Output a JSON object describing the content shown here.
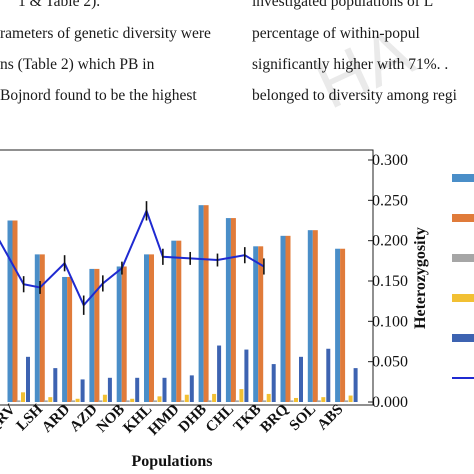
{
  "text_left": [
    "1 & Table 2).",
    "rameters of genetic diversity were",
    "ns  (Table  2)  which  PB  in",
    "Bojnord found to be the highest"
  ],
  "text_right": [
    "investigated  populations  of  L",
    "percentage    of    within-popul",
    "significantly higher with 71%. .",
    "belonged to diversity among regi"
  ],
  "watermark": "HA",
  "chart_data": {
    "type": "bar",
    "xlabel": "Populations",
    "ylabel": "Heterozygosity",
    "ylim": [
      0,
      0.3
    ],
    "yticks": [
      "0.000",
      "0.050",
      "0.100",
      "0.150",
      "0.200",
      "0.250",
      "0.300"
    ],
    "categories": [
      "QRV",
      "LSH",
      "ARD",
      "AZD",
      "NOB",
      "KHL",
      "HMD",
      "DHB",
      "CHL",
      "TKB",
      "BRQ",
      "SOL",
      "ABS"
    ],
    "series": [
      {
        "type": "bar",
        "color": "#4a8ec8",
        "values": [
          0.225,
          0.183,
          0.155,
          0.165,
          0.168,
          0.183,
          0.2,
          0.244,
          0.228,
          0.193,
          0.206,
          0.213,
          0.19
        ]
      },
      {
        "type": "bar",
        "color": "#e07b3a",
        "values": [
          0.225,
          0.183,
          0.155,
          0.165,
          0.168,
          0.183,
          0.2,
          0.244,
          0.228,
          0.193,
          0.206,
          0.213,
          0.19
        ]
      },
      {
        "type": "bar",
        "color": "#a6a6a6",
        "values": [
          0.002,
          0.002,
          0.002,
          0.002,
          0.002,
          0.002,
          0.002,
          0.002,
          0.002,
          0.002,
          0.002,
          0.002,
          0.002
        ]
      },
      {
        "type": "bar",
        "color": "#f2c033",
        "values": [
          0.012,
          0.006,
          0.004,
          0.009,
          0.004,
          0.007,
          0.009,
          0.01,
          0.016,
          0.01,
          0.005,
          0.006,
          0.008
        ]
      },
      {
        "type": "bar",
        "color": "#3d63b1",
        "values": [
          0.056,
          0.042,
          0.028,
          0.03,
          0.03,
          0.03,
          0.033,
          0.07,
          0.065,
          0.047,
          0.056,
          0.066,
          0.042
        ]
      },
      {
        "type": "line",
        "color": "#1f2ad1",
        "values": [
          0.21,
          0.146,
          0.142,
          0.172,
          0.12,
          0.147,
          0.166,
          0.237,
          0.18,
          0.178,
          0.176,
          0.182,
          0.168
        ],
        "errors": [
          0.01,
          0.01,
          0.008,
          0.01,
          0.012,
          0.01,
          0.008,
          0.012,
          0.01,
          0.008,
          0.008,
          0.01,
          0.01
        ]
      }
    ],
    "line_x_positions": [
      -0.55,
      0.5,
      1.1,
      2.0,
      2.7,
      3.4,
      4.1,
      5.0,
      5.6,
      6.6,
      7.6,
      8.6,
      9.3
    ],
    "legend_placement": "right"
  }
}
